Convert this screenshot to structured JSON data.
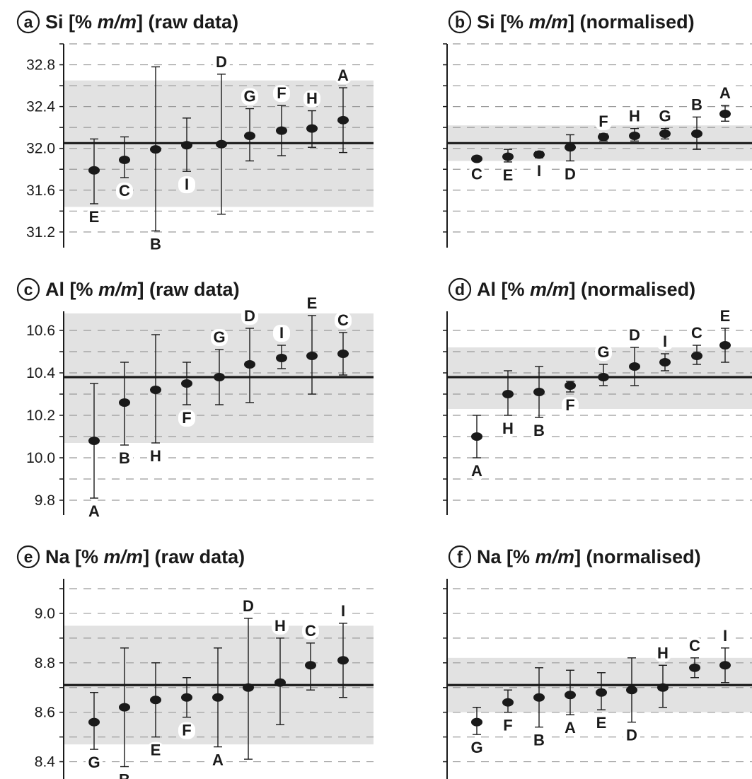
{
  "chart_data": [
    {
      "type": "scatter",
      "panel": "a",
      "title": [
        "Si [% ",
        "m/m",
        "] (raw data)"
      ],
      "yticks": [
        31.2,
        31.6,
        32.0,
        32.4,
        32.8
      ],
      "ytick_labels": [
        "31.2",
        "31.6",
        "32.0",
        "32.4",
        "32.8"
      ],
      "ylim": [
        31.05,
        33.0
      ],
      "mean": 32.05,
      "band": [
        31.44,
        32.65
      ],
      "points": [
        {
          "label": "E",
          "value": 31.79,
          "lo": 31.47,
          "hi": 32.09,
          "lpos": "below"
        },
        {
          "label": "C",
          "value": 31.89,
          "lo": 31.72,
          "hi": 32.11,
          "lpos": "below"
        },
        {
          "label": "B",
          "value": 31.99,
          "lo": 31.21,
          "hi": 32.78,
          "lpos": "below"
        },
        {
          "label": "I",
          "value": 32.03,
          "lo": 31.78,
          "hi": 32.29,
          "lpos": "below"
        },
        {
          "label": "D",
          "value": 32.04,
          "lo": 31.37,
          "hi": 32.71,
          "lpos": "above"
        },
        {
          "label": "G",
          "value": 32.12,
          "lo": 31.88,
          "hi": 32.38,
          "lpos": "above"
        },
        {
          "label": "F",
          "value": 32.17,
          "lo": 31.93,
          "hi": 32.41,
          "lpos": "above"
        },
        {
          "label": "H",
          "value": 32.19,
          "lo": 32.01,
          "hi": 32.36,
          "lpos": "above"
        },
        {
          "label": "A",
          "value": 32.27,
          "lo": 31.96,
          "hi": 32.58,
          "lpos": "above"
        }
      ]
    },
    {
      "type": "scatter",
      "panel": "b",
      "title": [
        "Si [% ",
        "m/m",
        "] (normalised)"
      ],
      "yticks": [],
      "ytick_labels": [],
      "ylim": [
        31.05,
        33.0
      ],
      "mean": 32.05,
      "band": [
        31.88,
        32.22
      ],
      "points": [
        {
          "label": "C",
          "value": 31.9,
          "lo": 31.88,
          "hi": 31.92,
          "lpos": "below"
        },
        {
          "label": "E",
          "value": 31.92,
          "lo": 31.87,
          "hi": 31.99,
          "lpos": "below"
        },
        {
          "label": "I",
          "value": 31.94,
          "lo": 31.91,
          "hi": 31.97,
          "lpos": "below"
        },
        {
          "label": "D",
          "value": 32.01,
          "lo": 31.88,
          "hi": 32.13,
          "lpos": "below"
        },
        {
          "label": "F",
          "value": 32.11,
          "lo": 32.07,
          "hi": 32.14,
          "lpos": "above"
        },
        {
          "label": "H",
          "value": 32.12,
          "lo": 32.07,
          "hi": 32.19,
          "lpos": "above"
        },
        {
          "label": "G",
          "value": 32.14,
          "lo": 32.09,
          "hi": 32.19,
          "lpos": "above"
        },
        {
          "label": "B",
          "value": 32.14,
          "lo": 31.99,
          "hi": 32.3,
          "lpos": "above"
        },
        {
          "label": "A",
          "value": 32.33,
          "lo": 32.26,
          "hi": 32.41,
          "lpos": "above"
        }
      ]
    },
    {
      "type": "scatter",
      "panel": "c",
      "title": [
        "Al [% ",
        "m/m",
        "] (raw data)"
      ],
      "yticks": [
        9.8,
        10.0,
        10.2,
        10.4,
        10.6
      ],
      "ytick_labels": [
        "9.8",
        "10.0",
        "10.2",
        "10.4",
        "10.6"
      ],
      "ylim": [
        9.73,
        10.69
      ],
      "mean": 10.38,
      "band": [
        10.07,
        10.68
      ],
      "points": [
        {
          "label": "A",
          "value": 10.08,
          "lo": 9.81,
          "hi": 10.35,
          "lpos": "below"
        },
        {
          "label": "B",
          "value": 10.26,
          "lo": 10.06,
          "hi": 10.45,
          "lpos": "below"
        },
        {
          "label": "H",
          "value": 10.32,
          "lo": 10.07,
          "hi": 10.58,
          "lpos": "below"
        },
        {
          "label": "F",
          "value": 10.35,
          "lo": 10.25,
          "hi": 10.45,
          "lpos": "below"
        },
        {
          "label": "G",
          "value": 10.38,
          "lo": 10.25,
          "hi": 10.51,
          "lpos": "above"
        },
        {
          "label": "D",
          "value": 10.44,
          "lo": 10.26,
          "hi": 10.61,
          "lpos": "above"
        },
        {
          "label": "I",
          "value": 10.47,
          "lo": 10.42,
          "hi": 10.53,
          "lpos": "above"
        },
        {
          "label": "E",
          "value": 10.48,
          "lo": 10.3,
          "hi": 10.67,
          "lpos": "above"
        },
        {
          "label": "C",
          "value": 10.49,
          "lo": 10.39,
          "hi": 10.59,
          "lpos": "above"
        }
      ]
    },
    {
      "type": "scatter",
      "panel": "d",
      "title": [
        "Al [% ",
        "m/m",
        "] (normalised)"
      ],
      "yticks": [],
      "ytick_labels": [],
      "ylim": [
        9.73,
        10.69
      ],
      "mean": 10.38,
      "band": [
        10.23,
        10.52
      ],
      "points": [
        {
          "label": "A",
          "value": 10.1,
          "lo": 10.0,
          "hi": 10.2,
          "lpos": "below"
        },
        {
          "label": "H",
          "value": 10.3,
          "lo": 10.2,
          "hi": 10.41,
          "lpos": "below"
        },
        {
          "label": "B",
          "value": 10.31,
          "lo": 10.19,
          "hi": 10.43,
          "lpos": "below"
        },
        {
          "label": "F",
          "value": 10.34,
          "lo": 10.31,
          "hi": 10.36,
          "lpos": "below"
        },
        {
          "label": "G",
          "value": 10.38,
          "lo": 10.34,
          "hi": 10.44,
          "lpos": "above"
        },
        {
          "label": "D",
          "value": 10.43,
          "lo": 10.34,
          "hi": 10.52,
          "lpos": "above"
        },
        {
          "label": "I",
          "value": 10.45,
          "lo": 10.41,
          "hi": 10.49,
          "lpos": "above"
        },
        {
          "label": "C",
          "value": 10.48,
          "lo": 10.44,
          "hi": 10.53,
          "lpos": "above"
        },
        {
          "label": "E",
          "value": 10.53,
          "lo": 10.45,
          "hi": 10.61,
          "lpos": "above"
        }
      ]
    },
    {
      "type": "scatter",
      "panel": "e",
      "title": [
        "Na [% ",
        "m/m",
        "] (raw data)"
      ],
      "yticks": [
        8.4,
        8.6,
        8.8,
        9.0
      ],
      "ytick_labels": [
        "8.4",
        "8.6",
        "8.8",
        "9.0"
      ],
      "ylim": [
        8.33,
        9.14
      ],
      "mean": 8.71,
      "band": [
        8.47,
        8.95
      ],
      "points": [
        {
          "label": "G",
          "value": 8.56,
          "lo": 8.45,
          "hi": 8.68,
          "lpos": "below"
        },
        {
          "label": "B",
          "value": 8.62,
          "lo": 8.38,
          "hi": 8.86,
          "lpos": "below"
        },
        {
          "label": "E",
          "value": 8.65,
          "lo": 8.5,
          "hi": 8.8,
          "lpos": "below"
        },
        {
          "label": "F",
          "value": 8.66,
          "lo": 8.58,
          "hi": 8.74,
          "lpos": "below"
        },
        {
          "label": "A",
          "value": 8.66,
          "lo": 8.46,
          "hi": 8.86,
          "lpos": "below"
        },
        {
          "label": "D",
          "value": 8.7,
          "lo": 8.41,
          "hi": 8.98,
          "lpos": "above"
        },
        {
          "label": "H",
          "value": 8.72,
          "lo": 8.55,
          "hi": 8.9,
          "lpos": "above"
        },
        {
          "label": "C",
          "value": 8.79,
          "lo": 8.69,
          "hi": 8.88,
          "lpos": "above"
        },
        {
          "label": "I",
          "value": 8.81,
          "lo": 8.66,
          "hi": 8.96,
          "lpos": "above"
        }
      ]
    },
    {
      "type": "scatter",
      "panel": "f",
      "title": [
        "Na [% ",
        "m/m",
        "] (normalised)"
      ],
      "yticks": [],
      "ytick_labels": [],
      "ylim": [
        8.33,
        9.14
      ],
      "mean": 8.71,
      "band": [
        8.6,
        8.82
      ],
      "points": [
        {
          "label": "G",
          "value": 8.56,
          "lo": 8.51,
          "hi": 8.62,
          "lpos": "below"
        },
        {
          "label": "F",
          "value": 8.64,
          "lo": 8.6,
          "hi": 8.69,
          "lpos": "below"
        },
        {
          "label": "B",
          "value": 8.66,
          "lo": 8.54,
          "hi": 8.78,
          "lpos": "below"
        },
        {
          "label": "A",
          "value": 8.67,
          "lo": 8.59,
          "hi": 8.77,
          "lpos": "below"
        },
        {
          "label": "E",
          "value": 8.68,
          "lo": 8.61,
          "hi": 8.76,
          "lpos": "below"
        },
        {
          "label": "D",
          "value": 8.69,
          "lo": 8.56,
          "hi": 8.82,
          "lpos": "below"
        },
        {
          "label": "H",
          "value": 8.7,
          "lo": 8.62,
          "hi": 8.79,
          "lpos": "above"
        },
        {
          "label": "C",
          "value": 8.78,
          "lo": 8.74,
          "hi": 8.82,
          "lpos": "above"
        },
        {
          "label": "I",
          "value": 8.79,
          "lo": 8.72,
          "hi": 8.86,
          "lpos": "above"
        }
      ]
    }
  ],
  "colors": {
    "band": "#e2e2e2",
    "ink": "#1a1a1a",
    "dash": "#9a9a9a"
  }
}
